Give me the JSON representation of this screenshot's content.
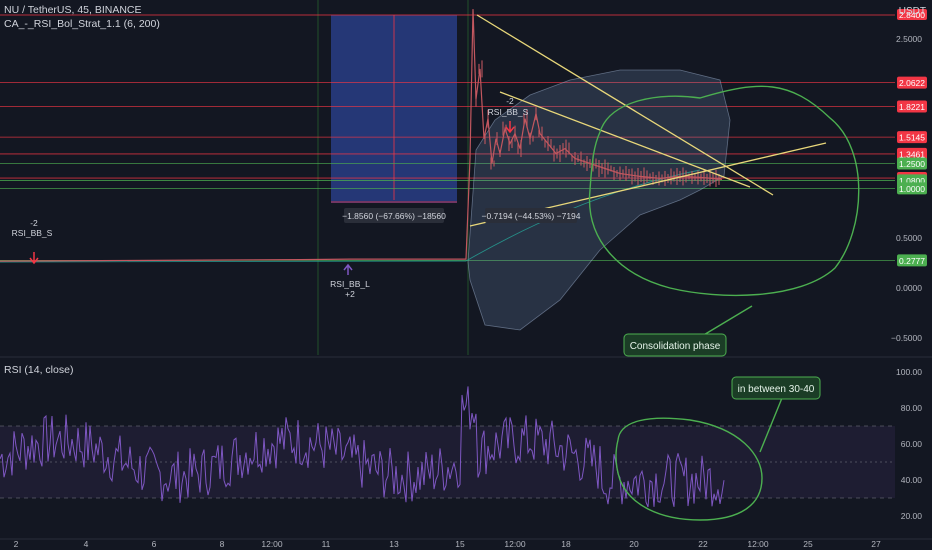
{
  "header": {
    "symbol": "NU / TetherUS, 45, BINANCE",
    "indicator": "CA_-_RSI_Bol_Strat_1.1 (6, 200)",
    "currency": "USDT"
  },
  "rsi_panel": {
    "label": "RSI (14, close)"
  },
  "colors": {
    "background": "#131722",
    "candle": "#c2575f",
    "rsi_line": "#7e57c2",
    "green_markup": "#4caf50",
    "yellow_trend": "#e8d77a",
    "red_level": "#f23645",
    "green_level": "#22ab94",
    "short_box": "#283b80"
  },
  "annotations": {
    "consolidation": "Consolidation phase",
    "rsi_range": "in between 30-40",
    "measure_left": "−1.8560 (−67.66%) −18560",
    "measure_right": "−0.7194 (−44.53%) −7194",
    "signal_short_1": "RSI_BB_S",
    "signal_short_1_qty": "-2",
    "signal_short_2": "RSI_BB_S",
    "signal_short_2_qty": "-2",
    "signal_long": "RSI_BB_L",
    "signal_long_qty": "+2"
  },
  "chart_data": [
    {
      "type": "line",
      "title": "NU / TetherUS, 45, BINANCE",
      "y_ticks": [
        "2.5000",
        "0.5000",
        "0.0000",
        "−0.5000"
      ],
      "y_range": [
        -0.7,
        2.9
      ],
      "x_ticks": [
        "2",
        "4",
        "6",
        "8",
        "12:00",
        "11",
        "13",
        "15",
        "12:00",
        "18",
        "20",
        "22",
        "12:00",
        "25",
        "27"
      ],
      "price_levels": [
        {
          "label": "2.0622",
          "value": 2.0622,
          "color": "#f23645"
        },
        {
          "label": "1.8221",
          "value": 1.8221,
          "color": "#f23645"
        },
        {
          "label": "1.5145",
          "value": 1.5145,
          "color": "#f23645"
        },
        {
          "label": "1.3461",
          "value": 1.3461,
          "color": "#f23645"
        },
        {
          "label": "1.2500",
          "value": 1.25,
          "color": "#4caf50"
        },
        {
          "label": "1.1039",
          "value": 1.1039,
          "color": "#f23645"
        },
        {
          "label": "1.0800",
          "value": 1.08,
          "color": "#4caf50"
        },
        {
          "label": "1.0000",
          "value": 1.0,
          "color": "#4caf50"
        },
        {
          "label": "0.2777",
          "value": 0.2777,
          "color": "#4caf50"
        }
      ],
      "current_price": "2.8400",
      "series": [
        {
          "values": [
            [
              0,
              0.27
            ],
            [
              100,
              0.275
            ],
            [
              200,
              0.28
            ],
            [
              300,
              0.285
            ],
            [
              350,
              0.29
            ],
            [
              420,
              0.29
            ],
            [
              466,
              0.29
            ],
            [
              470,
              1.3
            ],
            [
              473,
              2.8
            ],
            [
              476,
              1.9
            ],
            [
              480,
              2.2
            ],
            [
              484,
              1.5
            ],
            [
              488,
              1.7
            ],
            [
              492,
              1.25
            ],
            [
              496,
              1.5
            ],
            [
              500,
              1.35
            ],
            [
              505,
              1.6
            ],
            [
              510,
              1.45
            ],
            [
              515,
              1.55
            ],
            [
              520,
              1.4
            ],
            [
              525,
              1.7
            ],
            [
              530,
              1.5
            ],
            [
              536,
              1.75
            ],
            [
              540,
              1.55
            ],
            [
              548,
              1.45
            ],
            [
              556,
              1.35
            ],
            [
              565,
              1.4
            ],
            [
              575,
              1.3
            ],
            [
              590,
              1.25
            ],
            [
              605,
              1.2
            ],
            [
              620,
              1.15
            ],
            [
              640,
              1.12
            ],
            [
              660,
              1.1
            ],
            [
              680,
              1.12
            ],
            [
              700,
              1.11
            ],
            [
              712,
              1.1
            ],
            [
              722,
              1.09
            ]
          ]
        }
      ]
    },
    {
      "type": "line",
      "title": "RSI (14, close)",
      "y_ticks": [
        "100.00",
        "80.00",
        "60.00",
        "40.00",
        "20.00"
      ],
      "y_range": [
        15,
        102
      ],
      "band": [
        30,
        70
      ],
      "midline": 50
    }
  ]
}
